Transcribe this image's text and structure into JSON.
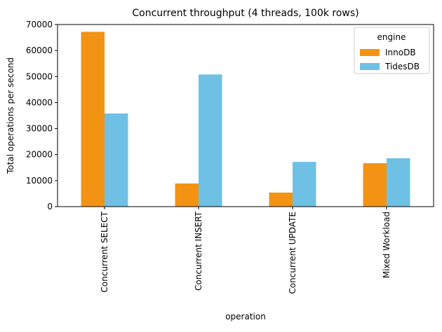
{
  "chart_data": {
    "type": "bar",
    "title": "Concurrent throughput (4 threads, 100k rows)",
    "x_label": "operation",
    "y_label": "Total operations per second",
    "categories": [
      "Concurrent SELECT",
      "Concurrent INSERT",
      "Concurrent UPDATE",
      "Mixed Workload"
    ],
    "series": [
      {
        "name": "InnoDB",
        "color": "#f39313",
        "values": [
          67200,
          8900,
          5400,
          16700
        ]
      },
      {
        "name": "TidesDB",
        "color": "#6ec1e4",
        "values": [
          35800,
          50800,
          17200,
          18600
        ]
      }
    ],
    "legend_title": "engine",
    "legend_position": "upper right",
    "ylim": [
      0,
      70000
    ],
    "yticks": [
      0,
      10000,
      20000,
      30000,
      40000,
      50000,
      60000,
      70000
    ]
  }
}
